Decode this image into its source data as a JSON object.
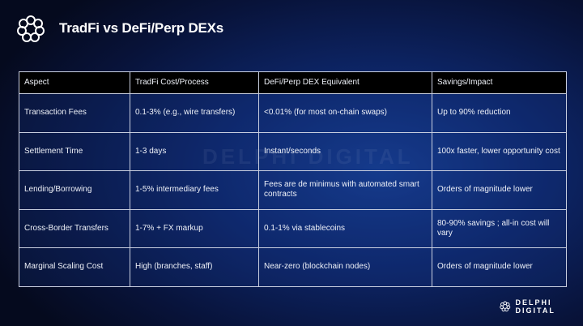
{
  "header": {
    "title": "TradFi vs DeFi/Perp DEXs"
  },
  "table": {
    "columns": [
      "Aspect",
      "TradFi Cost/Process",
      "DeFi/Perp DEX Equivalent",
      "Savings/Impact"
    ],
    "rows": [
      [
        "Transaction Fees",
        "0.1-3% (e.g., wire transfers)",
        "<0.01% (for most on-chain swaps)",
        "Up to 90% reduction"
      ],
      [
        "Settlement Time",
        "1-3 days",
        "Instant/seconds",
        "100x faster, lower opportunity cost"
      ],
      [
        "Lending/Borrowing",
        "1-5% intermediary fees",
        "Fees are de minimus with automated smart contracts",
        "Orders of magnitude lower"
      ],
      [
        "Cross-Border Transfers",
        "1-7% + FX markup",
        "0.1-1% via stablecoins",
        "80-90% savings ; all-in cost will vary"
      ],
      [
        "Marginal Scaling Cost",
        "High (branches, staff)",
        "Near-zero (blockchain nodes)",
        "Orders of magnitude lower"
      ]
    ]
  },
  "watermark": "DELPHI DIGITAL",
  "footer": {
    "brand": "DELPHI DIGITAL"
  }
}
